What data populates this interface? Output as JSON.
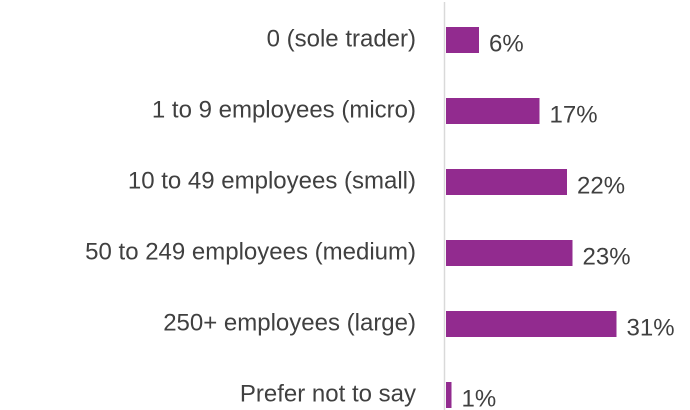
{
  "chart_data": {
    "type": "bar",
    "orientation": "horizontal",
    "categories": [
      "0 (sole trader)",
      "1 to 9 employees (micro)",
      "10 to 49 employees (small)",
      "50 to 249 employees (medium)",
      "250+ employees (large)",
      "Prefer not to say"
    ],
    "values": [
      6,
      17,
      22,
      23,
      31,
      1
    ],
    "value_labels": [
      "6%",
      "17%",
      "22%",
      "23%",
      "31%",
      "1%"
    ],
    "color": "#922b8f"
  }
}
